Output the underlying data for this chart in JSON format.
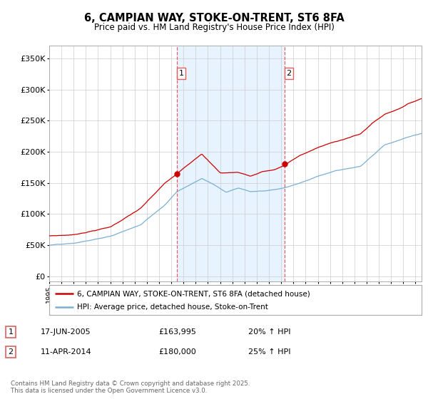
{
  "title": "6, CAMPIAN WAY, STOKE-ON-TRENT, ST6 8FA",
  "subtitle": "Price paid vs. HM Land Registry's House Price Index (HPI)",
  "sale1_date_label": "17-JUN-2005",
  "sale1_price": 163995,
  "sale1_price_label": "£163,995",
  "sale1_label": "1",
  "sale1_year": 2005.46,
  "sale1_hpi_change": "20% ↑ HPI",
  "sale2_date_label": "11-APR-2014",
  "sale2_price": 180000,
  "sale2_price_label": "£180,000",
  "sale2_label": "2",
  "sale2_year": 2014.28,
  "sale2_hpi_change": "25% ↑ HPI",
  "legend1": "6, CAMPIAN WAY, STOKE-ON-TRENT, ST6 8FA (detached house)",
  "legend2": "HPI: Average price, detached house, Stoke-on-Trent",
  "footer": "Contains HM Land Registry data © Crown copyright and database right 2025.\nThis data is licensed under the Open Government Licence v3.0.",
  "red_color": "#cc0000",
  "blue_color": "#7ab0d4",
  "vline_color": "#e06060",
  "shade_color": "#ddeeff",
  "yticks": [
    0,
    50000,
    100000,
    150000,
    200000,
    250000,
    300000,
    350000
  ],
  "ytick_labels": [
    "£0",
    "£50K",
    "£100K",
    "£150K",
    "£200K",
    "£250K",
    "£300K",
    "£350K"
  ],
  "xstart": 1995.0,
  "xend": 2025.5,
  "ymin": -8000,
  "ymax": 370000,
  "plot_bg": "#ffffff",
  "fig_bg": "#ffffff"
}
